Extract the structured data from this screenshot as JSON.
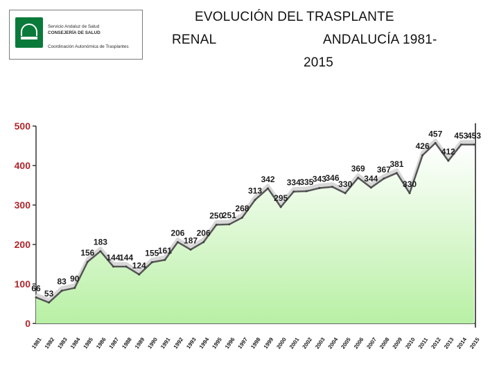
{
  "header": {
    "logo": {
      "line1": "Servicio Andaluz de Salud",
      "line2": "CONSEJERÍA DE SALUD",
      "line3": "Coordinación Autonómica de Trasplantes"
    },
    "title_line1": "EVOLUCIÓN DEL TRASPLANTE",
    "title_line2a": "RENAL",
    "title_line2b": "ANDALUCÍA 1981-",
    "title_line3": "2015"
  },
  "colors": {
    "ytick_label": "#b0262b",
    "area_fill_top": "#ffffff",
    "area_fill_bottom": "#b8f0a4",
    "line": "#555555",
    "line_light": "#d8d8d8"
  },
  "chart_data": {
    "type": "area",
    "title": "",
    "xlabel": "",
    "ylabel": "",
    "ylim": [
      0,
      500
    ],
    "yticks": [
      0,
      100,
      200,
      300,
      400,
      500
    ],
    "grid": false,
    "legend": "none",
    "x": [
      "1981",
      "1982",
      "1983",
      "1984",
      "1985",
      "1986",
      "1987",
      "1988",
      "1989",
      "1990",
      "1991",
      "1992",
      "1993",
      "1994",
      "1995",
      "1996",
      "1997",
      "1998",
      "1999",
      "2000",
      "2001",
      "2002",
      "2003",
      "2004",
      "2005",
      "2006",
      "2007",
      "2008",
      "2009",
      "2010",
      "2011",
      "2012",
      "2013",
      "2014",
      "2015"
    ],
    "series": [
      {
        "values": [
          66,
          53,
          83,
          90,
          156,
          183,
          144,
          144,
          124,
          155,
          161,
          206,
          187,
          206,
          250,
          251,
          268,
          313,
          342,
          295,
          334,
          335,
          343,
          346,
          330,
          369,
          344,
          367,
          381,
          330,
          426,
          457,
          412,
          453,
          453
        ]
      }
    ]
  }
}
